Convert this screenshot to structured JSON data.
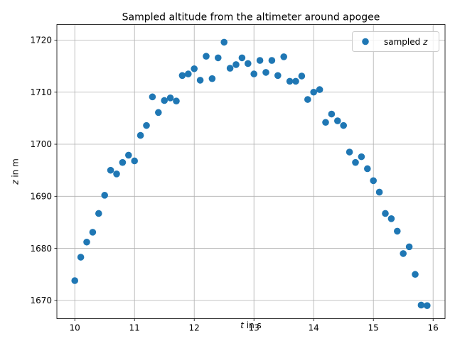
{
  "chart_data": {
    "type": "scatter",
    "title": "Sampled altitude from the altimeter around apogee",
    "xlabel": {
      "var": "t",
      "rest": " in s"
    },
    "ylabel": {
      "var": "z",
      "rest": " in m"
    },
    "xlim": [
      9.7,
      16.2
    ],
    "ylim": [
      1666.5,
      1723
    ],
    "xticks": [
      10,
      11,
      12,
      13,
      14,
      15,
      16
    ],
    "xtick_labels": [
      "10",
      "11",
      "12",
      "13",
      "14",
      "15",
      "16"
    ],
    "yticks": [
      1670,
      1680,
      1690,
      1700,
      1710,
      1720
    ],
    "ytick_labels": [
      "1670",
      "1680",
      "1690",
      "1700",
      "1710",
      "1720"
    ],
    "grid": true,
    "legend": {
      "placement": "top-right",
      "entry": {
        "text": "sampled ",
        "var": "z"
      }
    },
    "series": [
      {
        "color": "#1f77b4",
        "x": [
          10.0,
          10.1,
          10.2,
          10.3,
          10.4,
          10.5,
          10.6,
          10.7,
          10.8,
          10.9,
          11.0,
          11.1,
          11.2,
          11.3,
          11.4,
          11.5,
          11.6,
          11.7,
          11.8,
          11.9,
          12.0,
          12.1,
          12.2,
          12.3,
          12.4,
          12.5,
          12.6,
          12.7,
          12.8,
          12.9,
          13.0,
          13.1,
          13.2,
          13.3,
          13.4,
          13.5,
          13.6,
          13.7,
          13.8,
          13.9,
          14.0,
          14.1,
          14.2,
          14.3,
          14.4,
          14.5,
          14.6,
          14.7,
          14.8,
          14.9,
          15.0,
          15.1,
          15.2,
          15.3,
          15.4,
          15.5,
          15.6,
          15.7,
          15.8,
          15.9
        ],
        "y": [
          1673.8,
          1678.3,
          1681.2,
          1683.1,
          1686.7,
          1690.2,
          1695.0,
          1694.3,
          1696.5,
          1697.9,
          1696.8,
          1701.7,
          1703.6,
          1709.1,
          1706.1,
          1708.4,
          1708.9,
          1708.3,
          1713.2,
          1713.5,
          1714.5,
          1712.3,
          1716.9,
          1712.6,
          1716.6,
          1719.6,
          1714.6,
          1715.3,
          1716.6,
          1715.5,
          1713.5,
          1716.1,
          1713.8,
          1716.1,
          1713.2,
          1716.8,
          1712.1,
          1712.1,
          1713.1,
          1708.6,
          1710.0,
          1710.5,
          1704.2,
          1705.8,
          1704.5,
          1703.6,
          1698.5,
          1696.5,
          1697.6,
          1695.3,
          1693.0,
          1690.8,
          1686.7,
          1685.7,
          1683.3,
          1679.0,
          1680.3,
          1675.0,
          1669.1,
          1669.0
        ]
      }
    ]
  }
}
